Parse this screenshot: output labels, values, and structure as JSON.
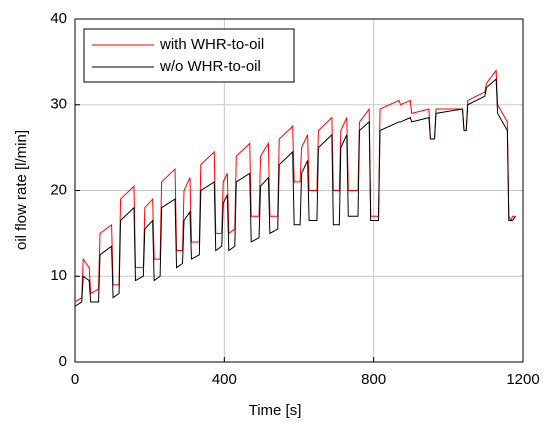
{
  "chart_data": {
    "type": "line",
    "xlabel": "Time [s]",
    "ylabel": "oil flow rate [l/min]",
    "x": [
      0,
      18,
      22,
      38,
      42,
      63,
      67,
      98,
      102,
      118,
      122,
      158,
      162,
      183,
      187,
      208,
      212,
      228,
      232,
      268,
      272,
      288,
      292,
      308,
      312,
      333,
      337,
      373,
      377,
      393,
      397,
      408,
      412,
      428,
      432,
      468,
      472,
      493,
      497,
      518,
      522,
      543,
      547,
      583,
      587,
      603,
      607,
      623,
      627,
      648,
      652,
      688,
      692,
      708,
      712,
      728,
      732,
      758,
      762,
      788,
      792,
      813,
      817,
      868,
      872,
      898,
      902,
      948,
      952,
      963,
      967,
      1038,
      1042,
      1048,
      1052,
      1098,
      1102,
      1128,
      1132,
      1158,
      1162,
      1168,
      1172,
      1180
    ],
    "series": [
      {
        "name": "with WHR-to-oil",
        "color": "#ff0000",
        "values": [
          7,
          7.5,
          12,
          11,
          8,
          8.5,
          15,
          16,
          9,
          9,
          19,
          20.5,
          11,
          11,
          18,
          19,
          12,
          12,
          21,
          22.5,
          13,
          13,
          20,
          21.5,
          14,
          14,
          23,
          24.5,
          15,
          15,
          21,
          22,
          15,
          15.5,
          24,
          25.5,
          17,
          17,
          24,
          25.5,
          17,
          17,
          26,
          27.5,
          21,
          21,
          25,
          26.5,
          20,
          20,
          27,
          28.5,
          20,
          20,
          27,
          28.5,
          20,
          20,
          28,
          29.5,
          17,
          17,
          29.5,
          30.5,
          30,
          30.5,
          29,
          29.5,
          26,
          26,
          29.5,
          29.5,
          27,
          27,
          30.5,
          31.5,
          32.5,
          34,
          30,
          28,
          17,
          16.5,
          17,
          17
        ]
      },
      {
        "name": "w/o WHR-to-oil",
        "color": "#000000",
        "values": [
          6.5,
          7,
          10,
          9.5,
          7,
          7,
          12.5,
          13.5,
          7.5,
          8,
          16.5,
          18,
          9.5,
          10,
          15.5,
          16.5,
          9.5,
          10,
          18,
          19,
          11,
          11.5,
          16.5,
          17.5,
          12,
          12.5,
          20,
          21,
          13,
          13.5,
          18.5,
          19.5,
          13,
          13.5,
          21,
          22,
          14,
          14.5,
          20.5,
          21.5,
          15,
          15.5,
          23,
          24.5,
          16,
          16,
          22,
          23.5,
          16.5,
          16.5,
          25,
          26.5,
          16,
          16,
          25,
          26.5,
          17,
          17,
          27,
          28,
          16.5,
          16.5,
          27,
          28,
          28,
          28.5,
          28,
          28.5,
          26,
          26,
          29,
          29.5,
          27,
          27,
          30,
          31,
          32,
          33,
          29,
          27,
          16.5,
          16.5,
          16.5,
          17
        ]
      }
    ],
    "xlim": [
      0,
      1200
    ],
    "xticks": [
      0,
      400,
      800,
      1200
    ],
    "ylim": [
      0,
      40
    ],
    "yticks": [
      0,
      10,
      20,
      30,
      40
    ],
    "grid": true,
    "legend": "upper left"
  }
}
